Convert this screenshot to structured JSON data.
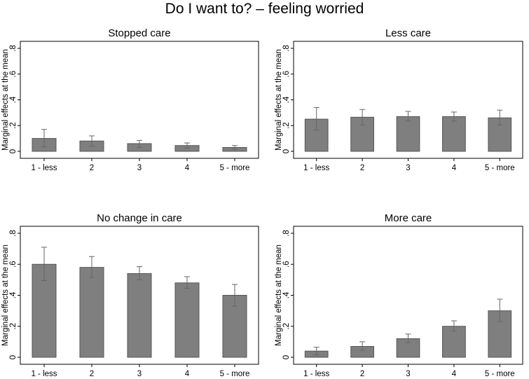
{
  "figure": {
    "title": "Do I want to?  – feeling worried"
  },
  "chart_data": [
    {
      "type": "bar",
      "title": "Stopped care",
      "ylabel": "Marginal effects at the mean",
      "xlabel": "",
      "categories": [
        "1 - less",
        "2",
        "3",
        "4",
        "5 - more"
      ],
      "values": [
        0.1,
        0.08,
        0.06,
        0.045,
        0.03
      ],
      "ci_low": [
        0.035,
        0.04,
        0.03,
        0.025,
        0.015
      ],
      "ci_high": [
        0.17,
        0.12,
        0.085,
        0.065,
        0.045
      ],
      "ylim": [
        0,
        0.8
      ],
      "yticks": [
        0,
        0.2,
        0.4,
        0.6,
        0.8
      ],
      "ytick_labels": [
        "0",
        ".2",
        ".4",
        ".6",
        ".8"
      ],
      "grid": false,
      "colors": {
        "bar": "#7f7f7f",
        "bar_edge": "#555555",
        "error_bar": "#666666"
      }
    },
    {
      "type": "bar",
      "title": "Less care",
      "ylabel": "Marginal effects at the mean",
      "xlabel": "",
      "categories": [
        "1 - less",
        "2",
        "3",
        "4",
        "5 - more"
      ],
      "values": [
        0.25,
        0.265,
        0.27,
        0.27,
        0.26
      ],
      "ci_low": [
        0.165,
        0.205,
        0.235,
        0.235,
        0.205
      ],
      "ci_high": [
        0.34,
        0.325,
        0.31,
        0.305,
        0.32
      ],
      "ylim": [
        0,
        0.8
      ],
      "yticks": [
        0,
        0.2,
        0.4,
        0.6,
        0.8
      ],
      "ytick_labels": [
        "0",
        ".2",
        ".4",
        ".6",
        ".8"
      ],
      "grid": false,
      "colors": {
        "bar": "#7f7f7f",
        "bar_edge": "#555555",
        "error_bar": "#666666"
      }
    },
    {
      "type": "bar",
      "title": "No change in care",
      "ylabel": "Marginal effects at the mean",
      "xlabel": "",
      "categories": [
        "1 - less",
        "2",
        "3",
        "4",
        "5 - more"
      ],
      "values": [
        0.6,
        0.58,
        0.54,
        0.48,
        0.4
      ],
      "ci_low": [
        0.495,
        0.515,
        0.5,
        0.445,
        0.33
      ],
      "ci_high": [
        0.71,
        0.65,
        0.585,
        0.52,
        0.47
      ],
      "ylim": [
        0,
        0.8
      ],
      "yticks": [
        0,
        0.2,
        0.4,
        0.6,
        0.8
      ],
      "ytick_labels": [
        "0",
        ".2",
        ".4",
        ".6",
        ".8"
      ],
      "grid": false,
      "colors": {
        "bar": "#7f7f7f",
        "bar_edge": "#555555",
        "error_bar": "#666666"
      }
    },
    {
      "type": "bar",
      "title": "More care",
      "ylabel": "Marginal effects at the mean",
      "xlabel": "",
      "categories": [
        "1 - less",
        "2",
        "3",
        "4",
        "5 - more"
      ],
      "values": [
        0.04,
        0.07,
        0.12,
        0.2,
        0.3
      ],
      "ci_low": [
        0.015,
        0.045,
        0.095,
        0.17,
        0.23
      ],
      "ci_high": [
        0.065,
        0.1,
        0.15,
        0.235,
        0.375
      ],
      "ylim": [
        0,
        0.8
      ],
      "yticks": [
        0,
        0.2,
        0.4,
        0.6,
        0.8
      ],
      "ytick_labels": [
        "0",
        ".2",
        ".4",
        ".6",
        ".8"
      ],
      "grid": false,
      "colors": {
        "bar": "#7f7f7f",
        "bar_edge": "#555555",
        "error_bar": "#666666"
      }
    }
  ]
}
